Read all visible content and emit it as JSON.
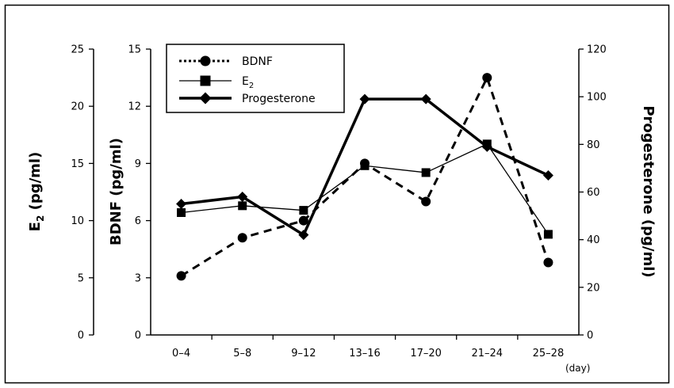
{
  "chart_data": {
    "type": "line",
    "categories": [
      "0–4",
      "5–8",
      "9–12",
      "13–16",
      "17–20",
      "21–24",
      "25–28"
    ],
    "x_unit": "(day)",
    "series": [
      {
        "name": "BDNF",
        "axis": "BDNF",
        "line_style": "dashed",
        "marker": "circle",
        "values": [
          3.1,
          5.1,
          6.0,
          9.0,
          7.0,
          13.5,
          3.8
        ]
      },
      {
        "name": "E",
        "name_subscript": "2",
        "axis": "E2",
        "line_style": "thin",
        "marker": "square",
        "values": [
          10.7,
          11.3,
          10.9,
          14.8,
          14.2,
          16.7,
          8.8
        ]
      },
      {
        "name": "Progesterone",
        "axis": "Progesterone",
        "line_style": "thick",
        "marker": "diamond",
        "values": [
          55,
          58,
          42,
          99,
          99,
          79,
          67
        ]
      }
    ],
    "axes": {
      "E2": {
        "title": "E",
        "title_subscript": "2",
        "title_unit": " (pg/ml)",
        "ylim": [
          0,
          25
        ],
        "ticks": [
          "0",
          "5",
          "10",
          "15",
          "20",
          "25"
        ]
      },
      "BDNF": {
        "title": "BDNF (pg/ml)",
        "ylim": [
          0,
          15
        ],
        "ticks": [
          "0",
          "3",
          "6",
          "9",
          "12",
          "15"
        ]
      },
      "Progesterone": {
        "title": "Progesterone (pg/ml)",
        "ylim": [
          0,
          120
        ],
        "ticks": [
          "0",
          "20",
          "40",
          "60",
          "80",
          "100",
          "120"
        ]
      }
    },
    "legend": {
      "position": "top-left"
    },
    "grid": false
  }
}
